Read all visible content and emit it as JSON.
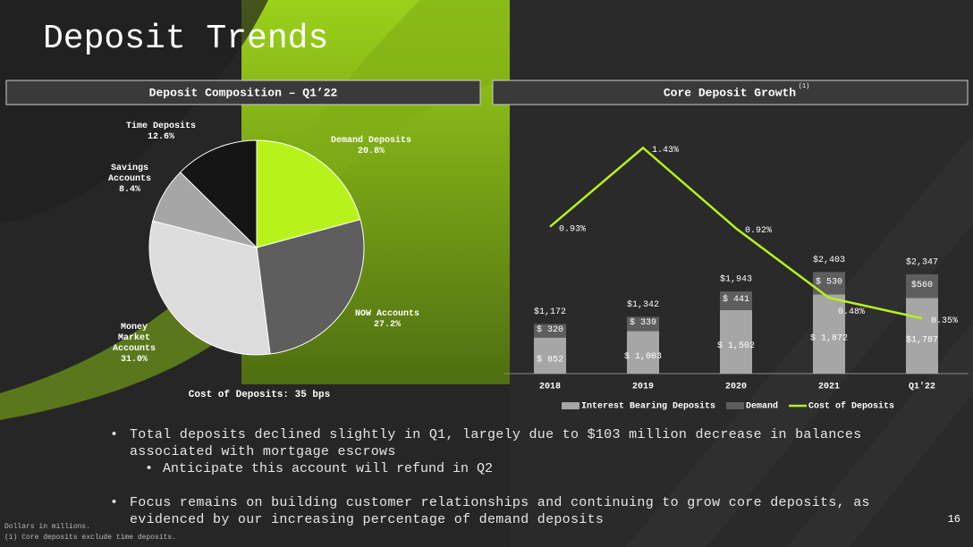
{
  "title": "Deposit Trends",
  "chart_data": [
    {
      "type": "pie",
      "title": "Deposit Composition – Q1’22",
      "categories": [
        "Demand Deposits",
        "NOW Accounts",
        "Money Market Accounts",
        "Savings Accounts",
        "Time Deposits"
      ],
      "values": [
        20.8,
        27.2,
        31.0,
        8.4,
        12.6
      ],
      "value_labels": [
        "20.8%",
        "27.2%",
        "31.0%",
        "8.4%",
        "12.6%"
      ],
      "colors": [
        "#b8f21c",
        "#5e5e5e",
        "#dcdcdc",
        "#a6a6a6",
        "#151515"
      ],
      "annotation": "Cost of Deposits: 35 bps"
    },
    {
      "type": "bar",
      "title": "Core Deposit Growth",
      "title_note": "(1)",
      "categories": [
        "2018",
        "2019",
        "2020",
        "2021",
        "Q1'22"
      ],
      "ylim": [
        0,
        5600
      ],
      "y2lim": [
        0,
        1.5
      ],
      "series": [
        {
          "name": "Interest Bearing Deposits",
          "color": "#a6a6a6",
          "values": [
            852,
            1003,
            1502,
            1872,
            1787
          ],
          "value_labels": [
            "$ 852",
            "$ 1,003",
            "$ 1,502",
            "$ 1,872",
            "$1,787"
          ]
        },
        {
          "name": "Demand",
          "color": "#5e5e5e",
          "values": [
            320,
            339,
            441,
            530,
            560
          ],
          "value_labels": [
            "$ 320",
            "$ 339",
            "$ 441",
            "$ 530",
            "$560"
          ]
        },
        {
          "name": "Cost of Deposits",
          "type": "line",
          "axis": "y2",
          "color": "#b8f21c",
          "values": [
            0.93,
            1.43,
            0.92,
            0.48,
            0.35
          ],
          "value_labels": [
            "0.93%",
            "1.43%",
            "0.92%",
            "0.48%",
            "0.35%"
          ]
        }
      ],
      "total_labels": [
        "$1,172",
        "$1,342",
        "$1,943",
        "$2,403",
        "$2,347"
      ]
    }
  ],
  "bullets": [
    {
      "text": "Total deposits declined slightly in Q1, largely due to $103 million decrease in balances associated with mortgage escrows",
      "sub": [
        "Anticipate this account will refund in Q2"
      ]
    },
    {
      "text": "Focus remains on building customer relationships and continuing to grow core deposits, as evidenced by our increasing percentage of demand deposits",
      "sub": []
    }
  ],
  "footnotes": [
    "Dollars in millions.",
    "(1) Core deposits exclude time deposits."
  ],
  "page_number": "16"
}
